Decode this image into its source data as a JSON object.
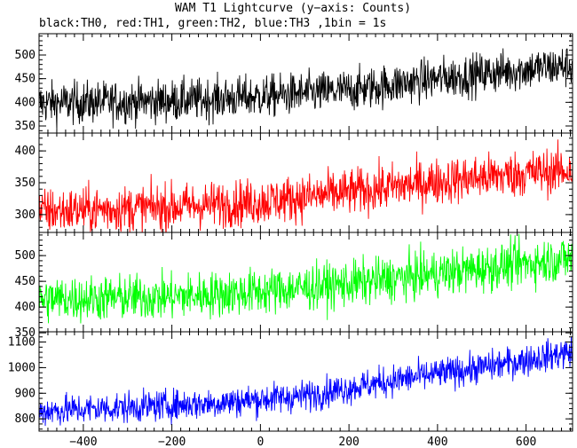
{
  "title": "WAM T1 Lightcurve (y−axis: Counts)",
  "subtitle": "black:TH0, red:TH1, green:TH2, blue:TH3 ,1bin = 1s",
  "chart_data": {
    "type": "line",
    "title": "WAM T1 Lightcurve (y−axis: Counts)",
    "subtitle": "black:TH0, red:TH1, green:TH2, blue:TH3 ,1bin = 1s",
    "xlim": [
      -500,
      705
    ],
    "x_ticks": [
      -400,
      -200,
      0,
      200,
      400,
      600
    ],
    "x_tick_labels": [
      "−400",
      "−200",
      "0",
      "200",
      "400",
      "600"
    ],
    "grid": false,
    "panels": [
      {
        "series_name": "TH0",
        "color": "#000000",
        "ylim": [
          335,
          545
        ],
        "y_ticks": [
          350,
          400,
          450,
          500
        ],
        "y_tick_labels": [
          "350",
          "400",
          "450",
          "500"
        ],
        "trend": [
          [
            -500,
            398
          ],
          [
            -200,
            403
          ],
          [
            0,
            412
          ],
          [
            200,
            425
          ],
          [
            400,
            450
          ],
          [
            600,
            470
          ],
          [
            700,
            477
          ]
        ],
        "noise": 22
      },
      {
        "series_name": "TH1",
        "color": "#ff0000",
        "ylim": [
          272,
          428
        ],
        "y_ticks": [
          300,
          350,
          400
        ],
        "y_tick_labels": [
          "300",
          "350",
          "400"
        ],
        "trend": [
          [
            -500,
            305
          ],
          [
            -200,
            312
          ],
          [
            0,
            320
          ],
          [
            200,
            335
          ],
          [
            400,
            352
          ],
          [
            600,
            365
          ],
          [
            700,
            370
          ]
        ],
        "noise": 18
      },
      {
        "series_name": "TH2",
        "color": "#00ff00",
        "ylim": [
          352,
          545
        ],
        "y_ticks": [
          350,
          400,
          450,
          500
        ],
        "y_tick_labels": [
          "350",
          "400",
          "450",
          "500"
        ],
        "trend": [
          [
            -500,
            415
          ],
          [
            -200,
            420
          ],
          [
            0,
            430
          ],
          [
            200,
            445
          ],
          [
            400,
            465
          ],
          [
            600,
            485
          ],
          [
            700,
            495
          ]
        ],
        "noise": 22
      },
      {
        "series_name": "TH3",
        "color": "#0000ff",
        "ylim": [
          752,
          1140
        ],
        "y_ticks": [
          800,
          900,
          1000,
          1100
        ],
        "y_tick_labels": [
          "800",
          "900",
          "1000",
          "1100"
        ],
        "trend": [
          [
            -500,
            830
          ],
          [
            -300,
            845
          ],
          [
            -100,
            862
          ],
          [
            100,
            890
          ],
          [
            300,
            950
          ],
          [
            500,
            1000
          ],
          [
            700,
            1060
          ]
        ],
        "noise": 30
      }
    ]
  }
}
